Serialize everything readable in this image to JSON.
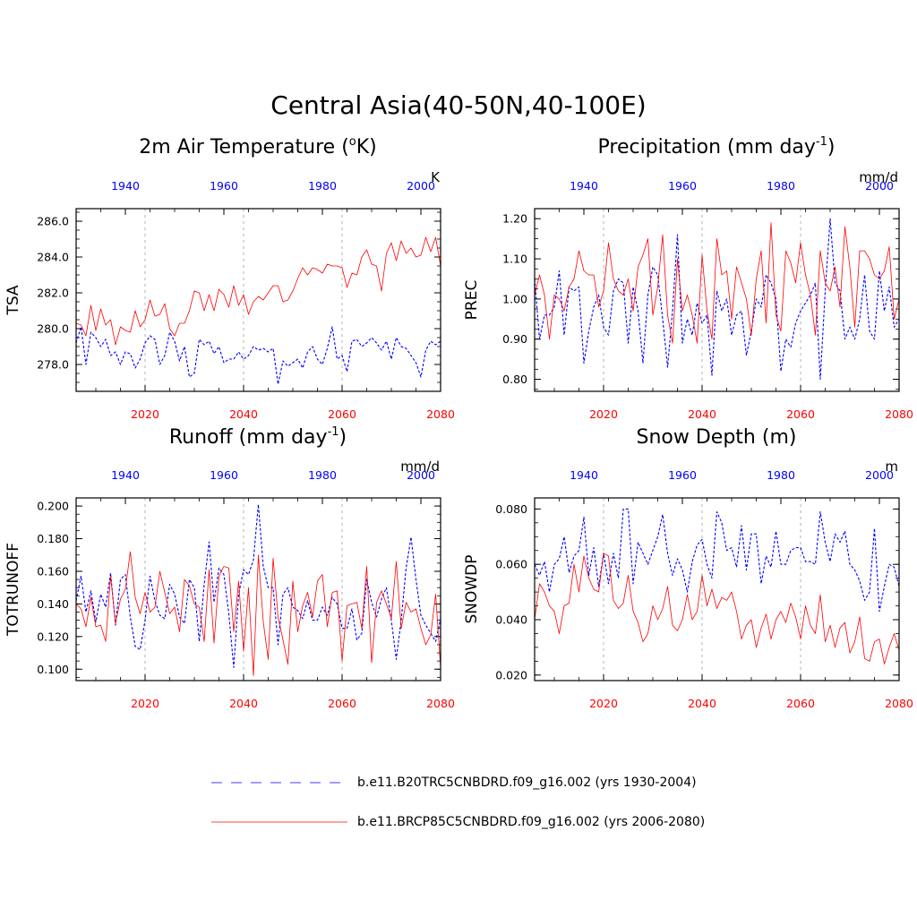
{
  "figure": {
    "title": "Central Asia(40-50N,40-100E)",
    "colors": {
      "historical": "#0000ff",
      "future": "#ff0000",
      "gridline": "#b0b0b0",
      "axis": "#000000"
    }
  },
  "legend": {
    "entries": [
      {
        "series": "historical",
        "label": "b.e11.B20TRC5CNBDRD.f09_g16.002 (yrs 1930-2004)"
      },
      {
        "series": "future",
        "label": "b.e11.BRCP85C5CNBDRD.f09_g16.002 (yrs 2006-2080)"
      }
    ]
  },
  "chart_data": [
    {
      "id": "tsa",
      "type": "line",
      "title_main": "2m Air Temperature (",
      "title_sup": "o",
      "title_end": "K)",
      "ylabel": "TSA",
      "units": "K",
      "ylim": [
        276.5,
        286.7
      ],
      "yticks": [
        "278.0",
        "280.0",
        "282.0",
        "284.0",
        "286.0"
      ],
      "xlim_bottom": [
        2006,
        2080
      ],
      "xticks_bottom": [
        "2020",
        "2040",
        "2060",
        "2080"
      ],
      "xlim_top": [
        1930,
        2004
      ],
      "xticks_top": [
        "1940",
        "1960",
        "1980",
        "2000"
      ],
      "gridlines_x": [
        2020,
        2040,
        2060
      ],
      "series": [
        {
          "name": "b.e11.B20TRC5CNBDRD.f09_g16.002",
          "axis": "top",
          "years": "1930-2004",
          "values": [
            279.2,
            280.1,
            278.0,
            279.8,
            279.5,
            279.0,
            279.4,
            278.5,
            278.7,
            278.0,
            278.7,
            278.6,
            277.8,
            278.3,
            279.2,
            279.6,
            279.4,
            278.0,
            278.5,
            279.8,
            279.3,
            278.2,
            279.0,
            277.3,
            277.5,
            279.4,
            279.1,
            279.3,
            278.6,
            279.0,
            278.1,
            278.3,
            278.3,
            278.7,
            278.3,
            278.5,
            279.0,
            278.8,
            278.9,
            278.7,
            278.9,
            276.9,
            278.2,
            277.9,
            278.1,
            278.3,
            277.8,
            278.7,
            279.0,
            278.3,
            278.0,
            278.9,
            280.1,
            278.3,
            278.5,
            277.6,
            279.3,
            279.4,
            279.0,
            279.2,
            279.5,
            279.2,
            278.8,
            279.3,
            278.3,
            279.5,
            279.0,
            278.9,
            278.5,
            278.1,
            277.3,
            278.8,
            279.3,
            279.1,
            279.3
          ]
        },
        {
          "name": "b.e11.BRCP85C5CNBDRD.f09_g16.002",
          "axis": "bottom",
          "years": "2006-2080",
          "values": [
            280.3,
            280.2,
            279.6,
            281.3,
            279.9,
            281.1,
            280.2,
            280.5,
            279.1,
            280.1,
            279.9,
            279.8,
            281.0,
            280.1,
            280.5,
            281.6,
            280.7,
            280.8,
            281.4,
            280.0,
            279.6,
            280.3,
            280.3,
            281.0,
            282.1,
            282.0,
            281.0,
            281.9,
            281.0,
            282.2,
            281.9,
            281.2,
            282.4,
            281.3,
            281.9,
            280.8,
            281.5,
            281.8,
            281.6,
            282.0,
            282.4,
            282.4,
            281.5,
            281.6,
            282.1,
            282.8,
            283.4,
            283.0,
            283.4,
            283.3,
            283.1,
            283.6,
            283.5,
            283.5,
            283.4,
            282.3,
            283.1,
            283.0,
            284.0,
            284.4,
            283.6,
            283.5,
            282.1,
            284.2,
            284.8,
            283.8,
            284.9,
            284.2,
            284.5,
            284.0,
            284.1,
            285.1,
            284.3,
            285.1,
            283.5
          ]
        }
      ]
    },
    {
      "id": "prec",
      "type": "line",
      "title_main": "Precipitation (mm day",
      "title_sup": "-1",
      "title_end": ")",
      "ylabel": "PREC",
      "units": "mm/d",
      "ylim": [
        0.77,
        1.225
      ],
      "yticks": [
        "0.80",
        "0.90",
        "1.00",
        "1.10",
        "1.20"
      ],
      "xlim_bottom": [
        2006,
        2080
      ],
      "xticks_bottom": [
        "2020",
        "2040",
        "2060",
        "2080"
      ],
      "xlim_top": [
        1930,
        2004
      ],
      "xticks_top": [
        "1940",
        "1960",
        "1980",
        "2000"
      ],
      "gridlines_x": [
        2020,
        2040,
        2060
      ],
      "series": [
        {
          "name": "b.e11.B20TRC5CNBDRD.f09_g16.002",
          "axis": "top",
          "years": "1930-2004",
          "values": [
            1.05,
            0.9,
            0.96,
            0.96,
            0.98,
            1.07,
            0.91,
            1.03,
            1.02,
            1.03,
            0.84,
            0.92,
            0.98,
            1.01,
            0.93,
            0.91,
            1.02,
            1.05,
            1.04,
            0.89,
            1.03,
            0.97,
            0.84,
            1.01,
            1.08,
            1.06,
            0.95,
            0.83,
            0.97,
            1.16,
            0.89,
            0.95,
            0.91,
            0.99,
            0.94,
            0.96,
            0.81,
            1.02,
            0.97,
            1.0,
            0.91,
            0.96,
            0.97,
            0.86,
            0.92,
            1.0,
            0.98,
            1.06,
            1.04,
            1.0,
            0.82,
            0.9,
            0.88,
            0.94,
            0.97,
            0.99,
            1.01,
            1.04,
            0.8,
            1.02,
            1.2,
            1.04,
            1.02,
            0.9,
            0.93,
            0.9,
            0.95,
            1.06,
            0.92,
            0.9,
            1.07,
            0.97,
            1.03,
            0.93,
            0.95
          ]
        },
        {
          "name": "b.e11.BRCP85C5CNBDRD.f09_g16.002",
          "axis": "bottom",
          "years": "2006-2080",
          "values": [
            1.01,
            1.06,
            1.01,
            0.9,
            1.01,
            1.0,
            0.97,
            1.03,
            1.05,
            1.12,
            1.07,
            1.06,
            1.06,
            0.98,
            1.02,
            1.14,
            1.05,
            1.02,
            1.01,
            1.05,
            0.97,
            1.08,
            1.11,
            1.15,
            0.96,
            1.03,
            1.16,
            0.96,
            0.89,
            1.1,
            0.97,
            1.01,
            0.96,
            0.89,
            1.11,
            0.97,
            0.9,
            1.15,
            1.06,
            1.07,
            0.95,
            1.08,
            1.04,
            1.0,
            0.91,
            1.05,
            1.12,
            0.94,
            1.19,
            0.96,
            0.92,
            1.12,
            1.09,
            1.04,
            1.14,
            1.06,
            1.01,
            0.91,
            1.12,
            1.04,
            1.02,
            1.08,
            0.98,
            1.18,
            1.08,
            0.93,
            1.12,
            1.12,
            1.1,
            1.06,
            1.05,
            1.07,
            1.13,
            0.95,
            1.0
          ]
        }
      ]
    },
    {
      "id": "runoff",
      "type": "line",
      "title_main": "Runoff (mm day",
      "title_sup": "-1",
      "title_end": ")",
      "ylabel": "TOTRUNOFF",
      "units": "mm/d",
      "ylim": [
        0.093,
        0.205
      ],
      "yticks": [
        "0.100",
        "0.120",
        "0.140",
        "0.160",
        "0.180",
        "0.200"
      ],
      "xlim_bottom": [
        2006,
        2080
      ],
      "xticks_bottom": [
        "2020",
        "2040",
        "2060",
        "2080"
      ],
      "xlim_top": [
        1930,
        2004
      ],
      "xticks_top": [
        "1940",
        "1960",
        "1980",
        "2000"
      ],
      "gridlines_x": [
        2020,
        2040,
        2060
      ],
      "series": [
        {
          "name": "b.e11.B20TRC5CNBDRD.f09_g16.002",
          "axis": "top",
          "years": "1930-2004",
          "values": [
            0.142,
            0.157,
            0.135,
            0.148,
            0.129,
            0.146,
            0.138,
            0.159,
            0.127,
            0.155,
            0.158,
            0.132,
            0.114,
            0.112,
            0.13,
            0.157,
            0.142,
            0.133,
            0.131,
            0.152,
            0.146,
            0.132,
            0.128,
            0.155,
            0.15,
            0.117,
            0.152,
            0.178,
            0.141,
            0.162,
            0.158,
            0.134,
            0.101,
            0.146,
            0.161,
            0.158,
            0.167,
            0.201,
            0.163,
            0.15,
            0.15,
            0.115,
            0.146,
            0.15,
            0.138,
            0.136,
            0.131,
            0.142,
            0.13,
            0.13,
            0.138,
            0.133,
            0.144,
            0.14,
            0.125,
            0.125,
            0.137,
            0.118,
            0.122,
            0.155,
            0.141,
            0.132,
            0.143,
            0.15,
            0.13,
            0.106,
            0.13,
            0.162,
            0.181,
            0.155,
            0.133,
            0.127,
            0.122,
            0.117,
            0.131
          ]
        },
        {
          "name": "b.e11.BRCP85C5CNBDRD.f09_g16.002",
          "axis": "bottom",
          "years": "2006-2080",
          "values": [
            0.14,
            0.137,
            0.126,
            0.144,
            0.126,
            0.127,
            0.117,
            0.157,
            0.128,
            0.143,
            0.149,
            0.172,
            0.144,
            0.134,
            0.147,
            0.135,
            0.138,
            0.16,
            0.147,
            0.134,
            0.138,
            0.123,
            0.155,
            0.151,
            0.14,
            0.138,
            0.117,
            0.161,
            0.116,
            0.157,
            0.163,
            0.162,
            0.123,
            0.154,
            0.111,
            0.15,
            0.096,
            0.17,
            0.129,
            0.106,
            0.168,
            0.132,
            0.118,
            0.103,
            0.154,
            0.123,
            0.139,
            0.147,
            0.132,
            0.154,
            0.158,
            0.126,
            0.147,
            0.148,
            0.105,
            0.139,
            0.14,
            0.141,
            0.125,
            0.163,
            0.104,
            0.141,
            0.148,
            0.14,
            0.131,
            0.166,
            0.125,
            0.141,
            0.135,
            0.137,
            0.125,
            0.115,
            0.121,
            0.146,
            0.101
          ]
        }
      ]
    },
    {
      "id": "snow",
      "type": "line",
      "title_main": "Snow Depth (m)",
      "title_sup": "",
      "title_end": "",
      "ylabel": "SNOWDP",
      "units": "m",
      "ylim": [
        0.018,
        0.084
      ],
      "yticks": [
        "0.020",
        "0.040",
        "0.060",
        "0.080"
      ],
      "xlim_bottom": [
        2006,
        2080
      ],
      "xticks_bottom": [
        "2020",
        "2040",
        "2060",
        "2080"
      ],
      "xlim_top": [
        1930,
        2004
      ],
      "xticks_top": [
        "1940",
        "1960",
        "1980",
        "2000"
      ],
      "gridlines_x": [
        2020,
        2040,
        2060
      ],
      "series": [
        {
          "name": "b.e11.B20TRC5CNBDRD.f09_g16.002",
          "axis": "top",
          "years": "1930-2004",
          "values": [
            0.06,
            0.056,
            0.061,
            0.05,
            0.06,
            0.062,
            0.07,
            0.057,
            0.063,
            0.065,
            0.077,
            0.056,
            0.066,
            0.052,
            0.064,
            0.053,
            0.064,
            0.055,
            0.08,
            0.08,
            0.053,
            0.068,
            0.064,
            0.06,
            0.065,
            0.07,
            0.078,
            0.064,
            0.056,
            0.062,
            0.058,
            0.05,
            0.061,
            0.067,
            0.069,
            0.06,
            0.055,
            0.079,
            0.075,
            0.065,
            0.066,
            0.059,
            0.074,
            0.058,
            0.071,
            0.071,
            0.053,
            0.063,
            0.059,
            0.072,
            0.06,
            0.06,
            0.065,
            0.066,
            0.066,
            0.061,
            0.061,
            0.06,
            0.079,
            0.068,
            0.061,
            0.071,
            0.068,
            0.072,
            0.06,
            0.058,
            0.054,
            0.047,
            0.05,
            0.073,
            0.043,
            0.052,
            0.06,
            0.059,
            0.052
          ]
        },
        {
          "name": "b.e11.BRCP85C5CNBDRD.f09_g16.002",
          "axis": "bottom",
          "years": "2006-2080",
          "values": [
            0.04,
            0.053,
            0.05,
            0.045,
            0.043,
            0.035,
            0.045,
            0.046,
            0.06,
            0.05,
            0.063,
            0.055,
            0.051,
            0.05,
            0.064,
            0.063,
            0.047,
            0.044,
            0.046,
            0.056,
            0.043,
            0.039,
            0.032,
            0.035,
            0.045,
            0.04,
            0.044,
            0.052,
            0.038,
            0.036,
            0.04,
            0.049,
            0.04,
            0.043,
            0.056,
            0.045,
            0.051,
            0.044,
            0.048,
            0.047,
            0.05,
            0.043,
            0.033,
            0.038,
            0.04,
            0.03,
            0.037,
            0.042,
            0.033,
            0.04,
            0.043,
            0.039,
            0.046,
            0.041,
            0.033,
            0.045,
            0.038,
            0.035,
            0.049,
            0.032,
            0.038,
            0.03,
            0.037,
            0.039,
            0.028,
            0.032,
            0.041,
            0.026,
            0.025,
            0.032,
            0.033,
            0.024,
            0.03,
            0.035,
            0.029
          ]
        }
      ]
    }
  ]
}
